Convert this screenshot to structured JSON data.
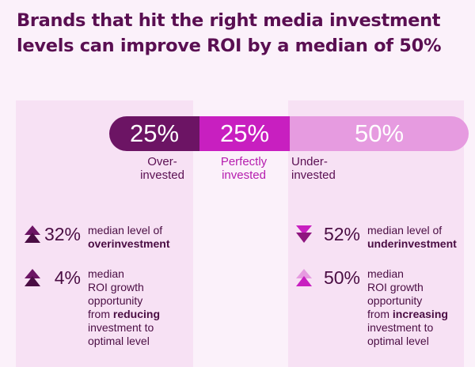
{
  "title_line1": "Brands that hit the right media investment",
  "title_line2": "levels can improve ROI by a median of 50%",
  "colors": {
    "over": "#6c1464",
    "perfect": "#c81fc0",
    "under": "#e69be0",
    "text": "#4a0d43",
    "title": "#5a0f52",
    "bg": "#fbf1fa",
    "panel": "#f7e1f4"
  },
  "chart_data": {
    "type": "bar",
    "orientation": "horizontal-stacked",
    "categories": [
      "Over-invested",
      "Perfectly invested",
      "Under-invested"
    ],
    "values": [
      25,
      25,
      50
    ],
    "value_labels": [
      "25%",
      "25%",
      "50%"
    ],
    "category_labels": [
      [
        "Over-",
        "invested"
      ],
      [
        "Perfectly",
        "invested"
      ],
      [
        "Under-",
        "invested"
      ]
    ]
  },
  "stats": {
    "left": [
      {
        "icon": "double-triangle-up-dark-icon",
        "value": "32%",
        "lines": [
          "median level of"
        ],
        "bold_line": "overinvestment",
        "after_bold": "",
        "tail_lines": []
      },
      {
        "icon": "double-triangle-up-dark-icon",
        "value": "4%",
        "lines": [
          "median",
          "ROI growth",
          "opportunity"
        ],
        "pre_bold": "from ",
        "bold_line": "reducing",
        "after_bold": "",
        "tail_lines": [
          "investment to",
          "optimal level"
        ]
      }
    ],
    "right": [
      {
        "icon": "double-triangle-down-magenta-icon",
        "value": "52%",
        "lines": [
          "median level of"
        ],
        "bold_line": "underinvestment",
        "after_bold": "",
        "tail_lines": []
      },
      {
        "icon": "double-triangle-up-magenta-icon",
        "value": "50%",
        "lines": [
          "median",
          "ROI growth",
          "opportunity"
        ],
        "pre_bold": "from ",
        "bold_line": "increasing",
        "after_bold": "",
        "tail_lines": [
          "investment to",
          "optimal level"
        ]
      }
    ]
  }
}
